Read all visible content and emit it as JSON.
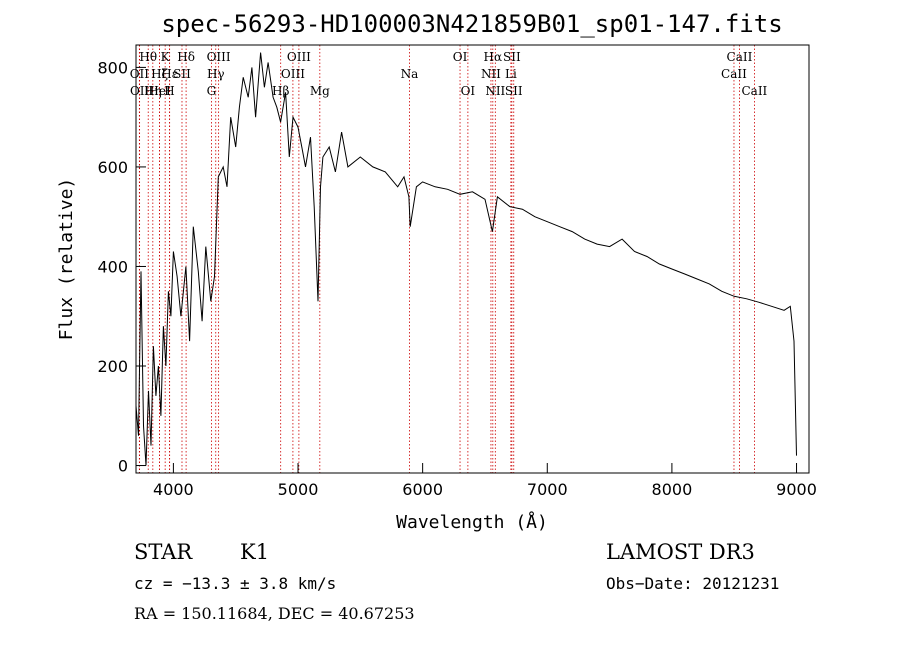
{
  "chart_data": {
    "type": "line",
    "title": "spec-56293-HD100003N421859B01_sp01-147.fits",
    "xlabel": "Wavelength (Å)",
    "ylabel": "Flux (relative)",
    "xlim": [
      3700,
      9100
    ],
    "ylim": [
      -15,
      845
    ],
    "x_ticks": [
      4000,
      5000,
      6000,
      7000,
      8000,
      9000
    ],
    "y_ticks": [
      0,
      200,
      400,
      600,
      800
    ],
    "series": [
      {
        "x": [
          3700,
          3720,
          3740,
          3760,
          3780,
          3800,
          3820,
          3840,
          3860,
          3880,
          3900,
          3920,
          3940,
          3960,
          3980,
          4000,
          4030,
          4060,
          4100,
          4130,
          4160,
          4200,
          4230,
          4260,
          4300,
          4330,
          4360,
          4400,
          4430,
          4460,
          4500,
          4530,
          4560,
          4600,
          4630,
          4660,
          4700,
          4730,
          4760,
          4800,
          4830,
          4860,
          4900,
          4930,
          4960,
          5000,
          5030,
          5060,
          5100,
          5130,
          5160,
          5180,
          5200,
          5250,
          5300,
          5350,
          5400,
          5500,
          5600,
          5700,
          5800,
          5850,
          5890,
          5900,
          5950,
          6000,
          6100,
          6200,
          6300,
          6400,
          6500,
          6560,
          6600,
          6700,
          6800,
          6900,
          7000,
          7100,
          7200,
          7300,
          7400,
          7500,
          7600,
          7700,
          7800,
          7900,
          8000,
          8100,
          8200,
          8300,
          8400,
          8500,
          8600,
          8700,
          8800,
          8900,
          8950,
          8980,
          9000
        ],
        "y": [
          120,
          60,
          390,
          80,
          0,
          150,
          40,
          240,
          140,
          200,
          100,
          280,
          200,
          350,
          300,
          430,
          380,
          300,
          400,
          250,
          480,
          390,
          290,
          440,
          330,
          380,
          580,
          600,
          560,
          700,
          640,
          720,
          780,
          740,
          800,
          700,
          830,
          760,
          810,
          740,
          720,
          690,
          750,
          620,
          700,
          680,
          640,
          600,
          660,
          520,
          330,
          560,
          620,
          640,
          590,
          670,
          600,
          620,
          600,
          590,
          560,
          580,
          540,
          480,
          560,
          570,
          560,
          555,
          545,
          550,
          535,
          470,
          540,
          520,
          515,
          500,
          490,
          480,
          470,
          455,
          445,
          440,
          455,
          430,
          420,
          405,
          395,
          385,
          375,
          365,
          350,
          340,
          335,
          328,
          320,
          312,
          320,
          250,
          20
        ]
      }
    ],
    "line_markers": [
      {
        "label": "Hθ",
        "wave": 3798,
        "row": 0
      },
      {
        "label": "OII",
        "wave": 3727,
        "row": 1
      },
      {
        "label": "OII",
        "wave": 3729,
        "row": 2
      },
      {
        "label": "K",
        "wave": 3934,
        "row": 0
      },
      {
        "label": "Hζ",
        "wave": 3889,
        "row": 1
      },
      {
        "label": "HeI",
        "wave": 3889,
        "row": 2
      },
      {
        "label": "Hε",
        "wave": 3970,
        "row": 1
      },
      {
        "label": "SII",
        "wave": 4069,
        "row": 1
      },
      {
        "label": "Hη",
        "wave": 3835,
        "row": 2
      },
      {
        "label": "H",
        "wave": 3969,
        "row": 2
      },
      {
        "label": "Hδ",
        "wave": 4102,
        "row": 0
      },
      {
        "label": "OIII",
        "wave": 4363,
        "row": 0
      },
      {
        "label": "Hγ",
        "wave": 4340,
        "row": 1
      },
      {
        "label": "G",
        "wave": 4305,
        "row": 2
      },
      {
        "label": "OIII",
        "wave": 5007,
        "row": 0
      },
      {
        "label": "OIII",
        "wave": 4959,
        "row": 1
      },
      {
        "label": "Hβ",
        "wave": 4861,
        "row": 2
      },
      {
        "label": "Mg",
        "wave": 5175,
        "row": 2
      },
      {
        "label": "Na",
        "wave": 5894,
        "row": 1
      },
      {
        "label": "OI",
        "wave": 6300,
        "row": 0
      },
      {
        "label": "OI",
        "wave": 6363,
        "row": 2
      },
      {
        "label": "Hα",
        "wave": 6563,
        "row": 0
      },
      {
        "label": "NII",
        "wave": 6548,
        "row": 1
      },
      {
        "label": "NII",
        "wave": 6583,
        "row": 2
      },
      {
        "label": "SII",
        "wave": 6716,
        "row": 0
      },
      {
        "label": "Li",
        "wave": 6708,
        "row": 1
      },
      {
        "label": "SII",
        "wave": 6731,
        "row": 2
      },
      {
        "label": "CaII",
        "wave": 8542,
        "row": 0
      },
      {
        "label": "CaII",
        "wave": 8498,
        "row": 1
      },
      {
        "label": "CaII",
        "wave": 8662,
        "row": 2
      }
    ],
    "grid": false,
    "colors": {
      "spectrum": "#000000",
      "line_markers": "#cc0000"
    }
  },
  "info": {
    "class": "STAR",
    "subclass": "K1",
    "survey": "LAMOST DR3",
    "cz": "cz = −13.3 ± 3.8 km/s",
    "obs_date": "Obs−Date: 20121231",
    "radec": "RA = 150.11684, DEC =  40.67253"
  }
}
